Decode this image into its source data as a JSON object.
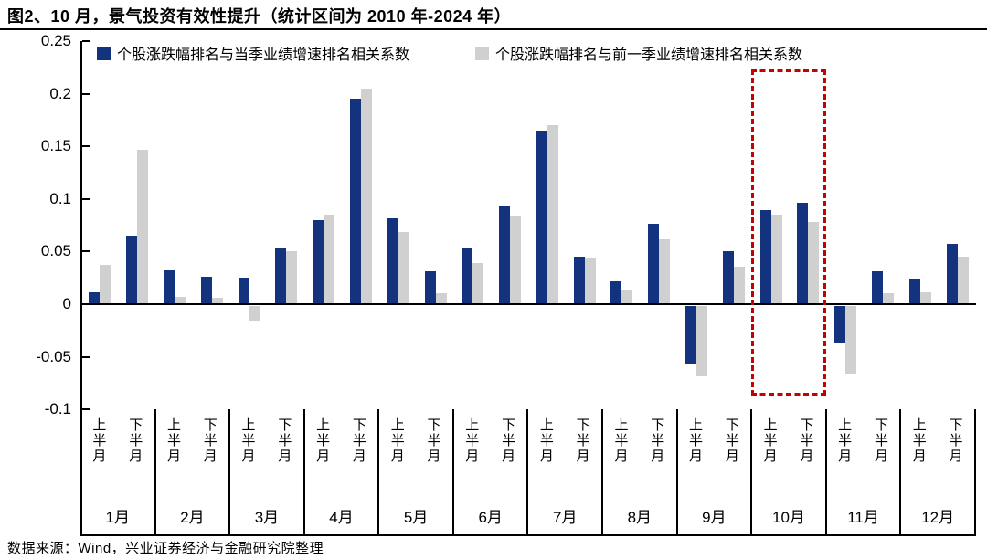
{
  "title": "图2、10 月，景气投资有效性提升（统计区间为 2010 年-2024 年）",
  "footer": "数据来源：Wind，兴业证券经济与金融研究院整理",
  "colors": {
    "current_quarter": "#14337e",
    "previous_quarter": "#d0d0d0",
    "highlight_border": "#c40000",
    "axis": "#000000"
  },
  "legend": [
    {
      "label": "个股涨跌幅排名与当季业绩增速排名相关系数",
      "color": "#14337e"
    },
    {
      "label": "个股涨跌幅排名与前一季业绩增速排名相关系数",
      "color": "#d0d0d0"
    }
  ],
  "chart_data": {
    "type": "bar",
    "title": "图2、10 月，景气投资有效性提升（统计区间为 2010 年-2024 年）",
    "xlabel": "",
    "ylabel": "",
    "ylim": [
      -0.1,
      0.25
    ],
    "yticks": [
      "0.25",
      "0.2",
      "0.15",
      "0.1",
      "0.05",
      "0",
      "-0.05",
      "-0.1"
    ],
    "ytick_values": [
      0.25,
      0.2,
      0.15,
      0.1,
      0.05,
      0,
      -0.05,
      -0.1
    ],
    "grid": false,
    "legend_position": "top",
    "half_labels": [
      "上半月",
      "下半月"
    ],
    "series_names": [
      "个股涨跌幅排名与当季业绩增速排名相关系数",
      "个股涨跌幅排名与前一季业绩增速排名相关系数"
    ],
    "highlighted_month": "10月",
    "months": [
      {
        "label": "1月",
        "halves": [
          {
            "half": "上半月",
            "current": 0.011,
            "previous": 0.037
          },
          {
            "half": "下半月",
            "current": 0.065,
            "previous": 0.147
          }
        ]
      },
      {
        "label": "2月",
        "halves": [
          {
            "half": "上半月",
            "current": 0.032,
            "previous": 0.007
          },
          {
            "half": "下半月",
            "current": 0.026,
            "previous": 0.006
          }
        ]
      },
      {
        "label": "3月",
        "halves": [
          {
            "half": "上半月",
            "current": 0.025,
            "previous": -0.014
          },
          {
            "half": "下半月",
            "current": 0.054,
            "previous": 0.05
          }
        ]
      },
      {
        "label": "4月",
        "halves": [
          {
            "half": "上半月",
            "current": 0.08,
            "previous": 0.085
          },
          {
            "half": "下半月",
            "current": 0.195,
            "previous": 0.205
          }
        ]
      },
      {
        "label": "5月",
        "halves": [
          {
            "half": "上半月",
            "current": 0.082,
            "previous": 0.069
          },
          {
            "half": "下半月",
            "current": 0.031,
            "previous": 0.01
          }
        ]
      },
      {
        "label": "6月",
        "halves": [
          {
            "half": "上半月",
            "current": 0.053,
            "previous": 0.039
          },
          {
            "half": "下半月",
            "current": 0.094,
            "previous": 0.083
          }
        ]
      },
      {
        "label": "7月",
        "halves": [
          {
            "half": "上半月",
            "current": 0.165,
            "previous": 0.17
          },
          {
            "half": "下半月",
            "current": 0.045,
            "previous": 0.044
          }
        ]
      },
      {
        "label": "8月",
        "halves": [
          {
            "half": "上半月",
            "current": 0.022,
            "previous": 0.013
          },
          {
            "half": "下半月",
            "current": 0.076,
            "previous": 0.062
          }
        ]
      },
      {
        "label": "9月",
        "halves": [
          {
            "half": "上半月",
            "current": -0.055,
            "previous": -0.067
          },
          {
            "half": "下半月",
            "current": 0.05,
            "previous": 0.036
          }
        ]
      },
      {
        "label": "10月",
        "halves": [
          {
            "half": "上半月",
            "current": 0.089,
            "previous": 0.085
          },
          {
            "half": "下半月",
            "current": 0.096,
            "previous": 0.078
          }
        ]
      },
      {
        "label": "11月",
        "halves": [
          {
            "half": "上半月",
            "current": -0.035,
            "previous": -0.064
          },
          {
            "half": "下半月",
            "current": 0.031,
            "previous": 0.01
          }
        ]
      },
      {
        "label": "12月",
        "halves": [
          {
            "half": "上半月",
            "current": 0.024,
            "previous": 0.011
          },
          {
            "half": "下半月",
            "current": 0.057,
            "previous": 0.045
          }
        ]
      }
    ]
  }
}
